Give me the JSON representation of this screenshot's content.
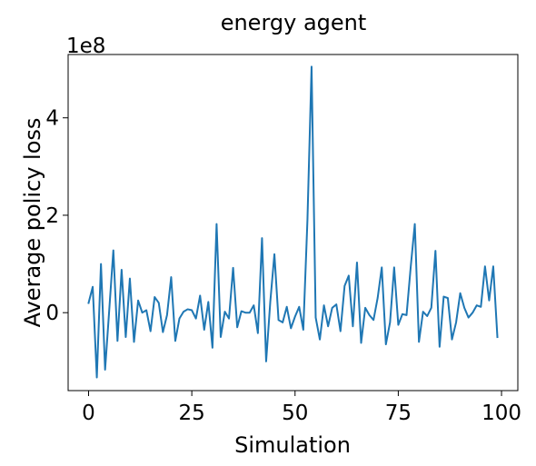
{
  "chart_data": {
    "type": "line",
    "title": "energy agent",
    "xlabel": "Simulation",
    "ylabel": "Average policy loss",
    "y_offset_label": "1e8",
    "y_scale_factor": 100000000,
    "xlim": [
      -4.95,
      103.95
    ],
    "ylim": [
      -1.6,
      5.3
    ],
    "xticks": [
      0,
      25,
      50,
      75,
      100
    ],
    "xtick_labels": [
      "0",
      "25",
      "50",
      "75",
      "100"
    ],
    "yticks": [
      0,
      2,
      4
    ],
    "ytick_labels": [
      "0",
      "2",
      "4"
    ],
    "grid": false,
    "legend": "none",
    "series": [
      {
        "color": "#1f77b4",
        "x": [
          0,
          1,
          2,
          3,
          4,
          5,
          6,
          7,
          8,
          9,
          10,
          11,
          12,
          13,
          14,
          15,
          16,
          17,
          18,
          19,
          20,
          21,
          22,
          23,
          24,
          25,
          26,
          27,
          28,
          29,
          30,
          31,
          32,
          33,
          34,
          35,
          36,
          37,
          38,
          39,
          40,
          41,
          42,
          43,
          44,
          45,
          46,
          47,
          48,
          49,
          50,
          51,
          52,
          53,
          54,
          55,
          56,
          57,
          58,
          59,
          60,
          61,
          62,
          63,
          64,
          65,
          66,
          67,
          68,
          69,
          70,
          71,
          72,
          73,
          74,
          75,
          76,
          77,
          78,
          79,
          80,
          81,
          82,
          83,
          84,
          85,
          86,
          87,
          88,
          89,
          90,
          91,
          92,
          93,
          94,
          95,
          96,
          97,
          98,
          99
        ],
        "y": [
          0.2,
          0.53,
          -1.33,
          1.0,
          -1.17,
          0.05,
          1.28,
          -0.58,
          0.88,
          -0.5,
          0.7,
          -0.6,
          0.25,
          0.0,
          0.05,
          -0.38,
          0.32,
          0.2,
          -0.4,
          -0.05,
          0.73,
          -0.58,
          -0.12,
          0.02,
          0.07,
          0.05,
          -0.12,
          0.35,
          -0.35,
          0.22,
          -0.72,
          1.82,
          -0.5,
          0.02,
          -0.12,
          0.92,
          -0.3,
          0.03,
          0.0,
          0.0,
          0.15,
          -0.42,
          1.53,
          -1.0,
          0.22,
          1.2,
          -0.15,
          -0.2,
          0.12,
          -0.32,
          -0.08,
          0.12,
          -0.35,
          1.9,
          5.05,
          -0.1,
          -0.55,
          0.15,
          -0.28,
          0.1,
          0.17,
          -0.38,
          0.55,
          0.76,
          -0.28,
          1.03,
          -0.62,
          0.1,
          -0.05,
          -0.15,
          0.3,
          0.93,
          -0.65,
          -0.2,
          0.93,
          -0.25,
          -0.03,
          -0.05,
          0.93,
          1.82,
          -0.6,
          0.02,
          -0.07,
          0.1,
          1.27,
          -0.7,
          0.33,
          0.3,
          -0.55,
          -0.2,
          0.4,
          0.1,
          -0.1,
          0.0,
          0.15,
          0.12,
          0.95,
          0.25,
          0.95,
          -0.5
        ]
      }
    ]
  }
}
